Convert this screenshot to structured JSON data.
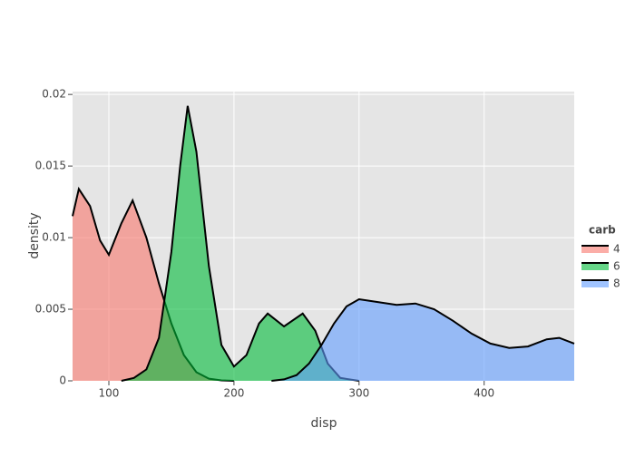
{
  "chart_data": {
    "type": "area",
    "xlabel": "disp",
    "ylabel": "density",
    "xlim": [
      71,
      472
    ],
    "ylim": [
      0,
      0.0202
    ],
    "xticks": [
      100,
      200,
      300,
      400
    ],
    "yticks": [
      0,
      0.005,
      0.01,
      0.015,
      0.02
    ],
    "grid": true,
    "legend_title": "carb",
    "legend_position": "right",
    "series": [
      {
        "name": "4",
        "color": "#F8766D",
        "x": [
          71,
          76,
          85,
          93,
          100,
          110,
          119,
          130,
          140,
          150,
          160,
          170,
          180,
          190,
          200
        ],
        "values": [
          0.0115,
          0.0134,
          0.0122,
          0.0098,
          0.0088,
          0.011,
          0.0126,
          0.01,
          0.0068,
          0.004,
          0.0018,
          0.0006,
          0.00015,
          3e-05,
          0
        ]
      },
      {
        "name": "6",
        "color": "#00BA38",
        "x": [
          110,
          120,
          130,
          140,
          150,
          157,
          163,
          170,
          180,
          190,
          200,
          210,
          220,
          227,
          240,
          255,
          265,
          275,
          285,
          300
        ],
        "values": [
          0,
          0.0002,
          0.0008,
          0.003,
          0.009,
          0.015,
          0.0192,
          0.016,
          0.008,
          0.0025,
          0.001,
          0.0018,
          0.004,
          0.0047,
          0.0038,
          0.0047,
          0.0035,
          0.0012,
          0.0002,
          0
        ]
      },
      {
        "name": "8",
        "color": "#619CFF",
        "x": [
          230,
          240,
          250,
          260,
          270,
          280,
          290,
          300,
          315,
          330,
          345,
          360,
          375,
          390,
          405,
          420,
          435,
          450,
          460,
          472
        ],
        "values": [
          0,
          0.0001,
          0.0004,
          0.0012,
          0.0025,
          0.004,
          0.0052,
          0.0057,
          0.0055,
          0.0053,
          0.0054,
          0.005,
          0.0042,
          0.0033,
          0.0026,
          0.0023,
          0.0024,
          0.0029,
          0.003,
          0.0026
        ]
      }
    ]
  }
}
